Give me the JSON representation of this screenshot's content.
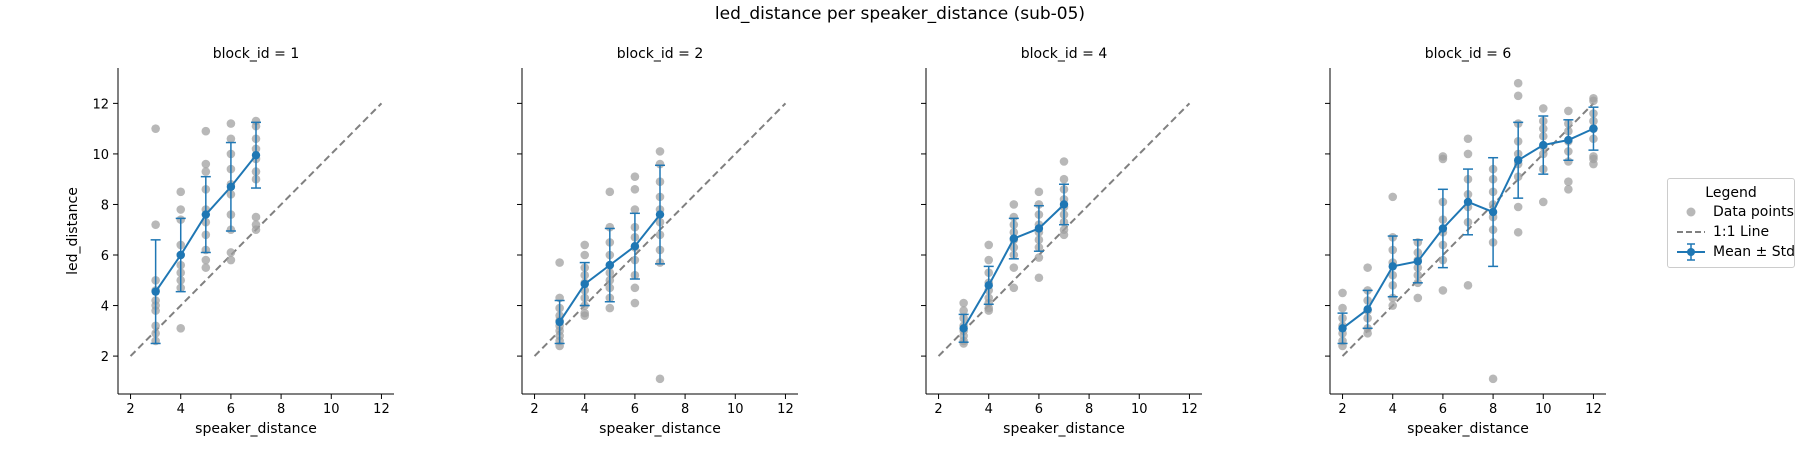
{
  "title": "led_distance per speaker_distance (sub-05)",
  "legend": {
    "title": "Legend",
    "entries": [
      {
        "label": "Data points",
        "kind": "scatter",
        "color": "#a0a0a0"
      },
      {
        "label": "1:1 Line",
        "kind": "dashed-line",
        "color": "#808080"
      },
      {
        "label": "Mean ± Std",
        "kind": "errorbar-line",
        "color": "#1f77b4"
      }
    ]
  },
  "chart_data": [
    {
      "type": "scatter",
      "title": "block_id = 1",
      "xlabel": "speaker_distance",
      "ylabel": "led_distance",
      "xlim": [
        1.5,
        12.5
      ],
      "ylim": [
        0.5,
        13.4
      ],
      "xticks": [
        2,
        4,
        6,
        8,
        10,
        12
      ],
      "yticks": [
        2,
        4,
        6,
        8,
        10,
        12
      ],
      "grid": false,
      "reference_line": {
        "name": "1:1 Line",
        "x": [
          2,
          12
        ],
        "y": [
          2,
          12
        ]
      },
      "points": {
        "x": [
          3,
          3,
          3,
          3,
          3,
          3,
          3,
          3,
          3,
          3,
          4,
          4,
          4,
          4,
          4,
          4,
          4,
          4,
          4,
          4,
          5,
          5,
          5,
          5,
          5,
          5,
          5,
          5,
          5,
          5,
          6,
          6,
          6,
          6,
          6,
          6,
          6,
          6,
          6,
          6,
          7,
          7,
          7,
          7,
          7,
          7,
          7,
          7,
          7,
          7
        ],
        "y": [
          11.0,
          7.2,
          5.0,
          4.6,
          4.2,
          4.0,
          3.8,
          3.2,
          2.9,
          2.6,
          8.5,
          7.8,
          7.4,
          6.4,
          6.0,
          5.6,
          5.3,
          5.0,
          4.7,
          3.1,
          10.9,
          9.6,
          9.3,
          8.6,
          7.8,
          7.3,
          6.8,
          6.2,
          5.8,
          5.5,
          11.2,
          10.6,
          10.0,
          9.4,
          8.8,
          8.4,
          7.6,
          7.0,
          6.1,
          5.8,
          11.3,
          11.1,
          10.6,
          10.2,
          9.8,
          9.3,
          9.0,
          7.5,
          7.2,
          7.0
        ]
      },
      "mean": {
        "x": [
          3,
          4,
          5,
          6,
          7
        ],
        "y": [
          4.55,
          6.0,
          7.6,
          8.7,
          9.95
        ],
        "std": [
          2.05,
          1.45,
          1.5,
          1.75,
          1.3
        ]
      }
    },
    {
      "type": "scatter",
      "title": "block_id = 2",
      "xlabel": "speaker_distance",
      "ylabel": "",
      "xlim": [
        1.5,
        12.5
      ],
      "ylim": [
        0.5,
        13.4
      ],
      "xticks": [
        2,
        4,
        6,
        8,
        10,
        12
      ],
      "yticks": [
        2,
        4,
        6,
        8,
        10,
        12
      ],
      "grid": false,
      "reference_line": {
        "name": "1:1 Line",
        "x": [
          2,
          12
        ],
        "y": [
          2,
          12
        ]
      },
      "points": {
        "x": [
          3,
          3,
          3,
          3,
          3,
          3,
          3,
          3,
          3,
          3,
          4,
          4,
          4,
          4,
          4,
          4,
          4,
          4,
          4,
          4,
          5,
          5,
          5,
          5,
          5,
          5,
          5,
          5,
          5,
          5,
          6,
          6,
          6,
          6,
          6,
          6,
          6,
          6,
          6,
          6,
          7,
          7,
          7,
          7,
          7,
          7,
          7,
          7,
          7,
          7
        ],
        "y": [
          5.7,
          4.3,
          3.9,
          3.6,
          3.4,
          3.2,
          3.0,
          2.8,
          2.6,
          2.4,
          6.4,
          6.0,
          5.5,
          5.2,
          4.9,
          4.6,
          4.3,
          4.0,
          3.7,
          3.6,
          8.5,
          7.1,
          6.5,
          6.0,
          5.6,
          5.3,
          5.0,
          4.7,
          4.3,
          3.9,
          9.1,
          8.6,
          7.8,
          7.1,
          6.7,
          6.3,
          5.8,
          5.2,
          4.7,
          4.1,
          10.1,
          9.6,
          8.9,
          8.3,
          7.8,
          7.3,
          6.8,
          6.2,
          5.7,
          1.1
        ]
      },
      "mean": {
        "x": [
          3,
          4,
          5,
          6,
          7
        ],
        "y": [
          3.35,
          4.85,
          5.6,
          6.35,
          7.6
        ],
        "std": [
          0.85,
          0.85,
          1.45,
          1.3,
          1.95
        ]
      }
    },
    {
      "type": "scatter",
      "title": "block_id = 4",
      "xlabel": "speaker_distance",
      "ylabel": "",
      "xlim": [
        1.5,
        12.5
      ],
      "ylim": [
        0.5,
        13.4
      ],
      "xticks": [
        2,
        4,
        6,
        8,
        10,
        12
      ],
      "yticks": [
        2,
        4,
        6,
        8,
        10,
        12
      ],
      "grid": false,
      "reference_line": {
        "name": "1:1 Line",
        "x": [
          2,
          12
        ],
        "y": [
          2,
          12
        ]
      },
      "points": {
        "x": [
          3,
          3,
          3,
          3,
          3,
          3,
          3,
          3,
          4,
          4,
          4,
          4,
          4,
          4,
          4,
          4,
          4,
          5,
          5,
          5,
          5,
          5,
          5,
          5,
          5,
          5,
          6,
          6,
          6,
          6,
          6,
          6,
          6,
          6,
          6,
          7,
          7,
          7,
          7,
          7,
          7,
          7,
          7,
          7
        ],
        "y": [
          4.1,
          3.8,
          3.5,
          3.2,
          3.0,
          2.8,
          2.6,
          2.5,
          6.4,
          5.8,
          5.3,
          4.9,
          4.6,
          4.3,
          4.1,
          3.9,
          3.8,
          8.0,
          7.5,
          7.2,
          6.9,
          6.6,
          6.3,
          6.0,
          5.5,
          4.7,
          8.5,
          8.0,
          7.6,
          7.2,
          6.9,
          6.6,
          6.3,
          5.9,
          5.1,
          9.7,
          9.0,
          8.6,
          8.2,
          7.9,
          7.6,
          7.3,
          7.0,
          6.8
        ]
      },
      "mean": {
        "x": [
          3,
          4,
          5,
          6,
          7
        ],
        "y": [
          3.1,
          4.8,
          6.65,
          7.05,
          8.0
        ],
        "std": [
          0.55,
          0.75,
          0.8,
          0.9,
          0.8
        ]
      }
    },
    {
      "type": "scatter",
      "title": "block_id = 6",
      "xlabel": "speaker_distance",
      "ylabel": "",
      "xlim": [
        1.5,
        12.5
      ],
      "ylim": [
        0.5,
        13.4
      ],
      "xticks": [
        2,
        4,
        6,
        8,
        10,
        12
      ],
      "yticks": [
        2,
        4,
        6,
        8,
        10,
        12
      ],
      "grid": false,
      "reference_line": {
        "name": "1:1 Line",
        "x": [
          2,
          12
        ],
        "y": [
          2,
          12
        ]
      },
      "points": {
        "x": [
          2,
          2,
          2,
          2,
          2,
          2,
          2,
          3,
          3,
          3,
          3,
          3,
          3,
          3,
          4,
          4,
          4,
          4,
          4,
          4,
          4,
          4,
          5,
          5,
          5,
          5,
          5,
          5,
          5,
          6,
          6,
          6,
          6,
          6,
          6,
          6,
          6,
          7,
          7,
          7,
          7,
          7,
          7,
          7,
          8,
          8,
          8,
          8,
          8,
          8,
          8,
          8,
          9,
          9,
          9,
          9,
          9,
          9,
          9,
          9,
          9,
          10,
          10,
          10,
          10,
          10,
          10,
          10,
          10,
          11,
          11,
          11,
          11,
          11,
          11,
          11,
          11,
          12,
          12,
          12,
          12,
          12,
          12,
          12,
          12,
          12
        ],
        "y": [
          4.5,
          3.9,
          3.5,
          3.2,
          2.9,
          2.6,
          2.4,
          5.5,
          4.6,
          4.2,
          3.8,
          3.5,
          3.1,
          2.9,
          8.3,
          6.7,
          6.2,
          5.7,
          5.2,
          4.8,
          4.3,
          4.0,
          6.5,
          6.1,
          5.8,
          5.5,
          5.2,
          4.9,
          4.3,
          9.9,
          9.8,
          8.1,
          7.4,
          6.9,
          6.4,
          5.8,
          4.6,
          10.6,
          10.0,
          9.0,
          8.4,
          7.9,
          7.3,
          4.8,
          9.4,
          9.0,
          8.5,
          8.0,
          7.5,
          7.0,
          6.5,
          1.1,
          12.8,
          12.3,
          11.2,
          10.5,
          10.0,
          9.6,
          9.1,
          7.9,
          6.9,
          11.8,
          11.3,
          11.0,
          10.7,
          10.3,
          10.0,
          9.4,
          8.1,
          11.7,
          11.2,
          10.9,
          10.5,
          10.1,
          9.7,
          8.9,
          8.6,
          12.2,
          12.1,
          11.6,
          11.3,
          11.0,
          10.6,
          9.9,
          9.8,
          9.6
        ]
      },
      "mean": {
        "x": [
          2,
          3,
          4,
          5,
          6,
          7,
          8,
          9,
          10,
          11,
          12
        ],
        "y": [
          3.1,
          3.85,
          5.55,
          5.75,
          7.05,
          8.1,
          7.7,
          9.75,
          10.35,
          10.55,
          11.0
        ],
        "std": [
          0.6,
          0.75,
          1.2,
          0.85,
          1.55,
          1.3,
          2.15,
          1.5,
          1.15,
          0.8,
          0.85
        ]
      }
    }
  ]
}
